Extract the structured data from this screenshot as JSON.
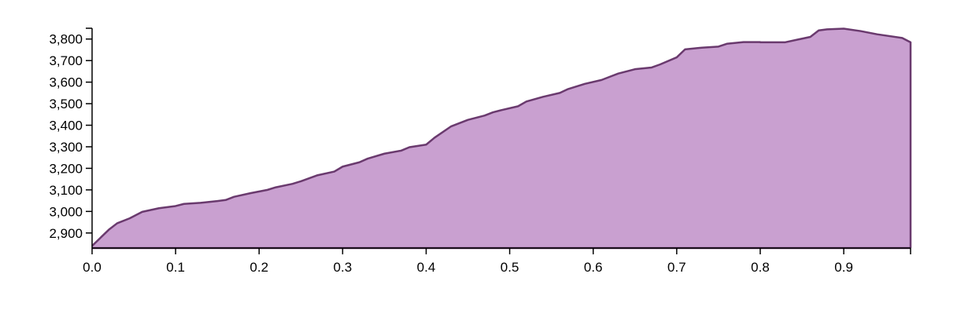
{
  "chart_data": {
    "type": "area",
    "title": "",
    "xlabel": "",
    "ylabel": "",
    "xlim": [
      0,
      0.98
    ],
    "ylim": [
      2830,
      3850
    ],
    "grid": false,
    "legend": "none",
    "colors": {
      "fill": "#c9a0d0",
      "stroke": "#6a3a6e",
      "axis": "#000000"
    },
    "x_ticks": [
      {
        "value": 0.0,
        "label": "0.0"
      },
      {
        "value": 0.1,
        "label": "0.1"
      },
      {
        "value": 0.2,
        "label": "0.2"
      },
      {
        "value": 0.3,
        "label": "0.3"
      },
      {
        "value": 0.4,
        "label": "0.4"
      },
      {
        "value": 0.5,
        "label": "0.5"
      },
      {
        "value": 0.6,
        "label": "0.6"
      },
      {
        "value": 0.7,
        "label": "0.7"
      },
      {
        "value": 0.8,
        "label": "0.8"
      },
      {
        "value": 0.9,
        "label": "0.9"
      }
    ],
    "y_ticks": [
      {
        "value": 2900,
        "label": "2,900"
      },
      {
        "value": 3000,
        "label": "3,000"
      },
      {
        "value": 3100,
        "label": "3,100"
      },
      {
        "value": 3200,
        "label": "3,200"
      },
      {
        "value": 3300,
        "label": "3,300"
      },
      {
        "value": 3400,
        "label": "3,400"
      },
      {
        "value": 3500,
        "label": "3,500"
      },
      {
        "value": 3600,
        "label": "3,600"
      },
      {
        "value": 3700,
        "label": "3,700"
      },
      {
        "value": 3800,
        "label": "3,800"
      }
    ],
    "series": [
      {
        "x": [
          0.0,
          0.02,
          0.03,
          0.045,
          0.06,
          0.08,
          0.1,
          0.11,
          0.13,
          0.15,
          0.16,
          0.17,
          0.19,
          0.21,
          0.22,
          0.24,
          0.25,
          0.27,
          0.29,
          0.3,
          0.32,
          0.33,
          0.35,
          0.37,
          0.38,
          0.4,
          0.41,
          0.43,
          0.45,
          0.47,
          0.48,
          0.49,
          0.51,
          0.52,
          0.54,
          0.56,
          0.57,
          0.59,
          0.61,
          0.62,
          0.63,
          0.65,
          0.67,
          0.68,
          0.7,
          0.71,
          0.73,
          0.75,
          0.76,
          0.78,
          0.8,
          0.8,
          0.83,
          0.86,
          0.87,
          0.88,
          0.9,
          0.92,
          0.94,
          0.97,
          0.98
        ],
        "y": [
          2840,
          2915,
          2945,
          2968,
          2998,
          3015,
          3025,
          3035,
          3040,
          3048,
          3053,
          3068,
          3085,
          3100,
          3112,
          3128,
          3140,
          3168,
          3185,
          3208,
          3228,
          3245,
          3268,
          3282,
          3298,
          3310,
          3342,
          3395,
          3425,
          3445,
          3460,
          3470,
          3488,
          3510,
          3532,
          3550,
          3568,
          3592,
          3610,
          3625,
          3640,
          3660,
          3668,
          3682,
          3715,
          3752,
          3760,
          3765,
          3778,
          3786,
          3786,
          3785,
          3785,
          3810,
          3840,
          3845,
          3848,
          3837,
          3822,
          3805,
          3785
        ]
      }
    ]
  }
}
